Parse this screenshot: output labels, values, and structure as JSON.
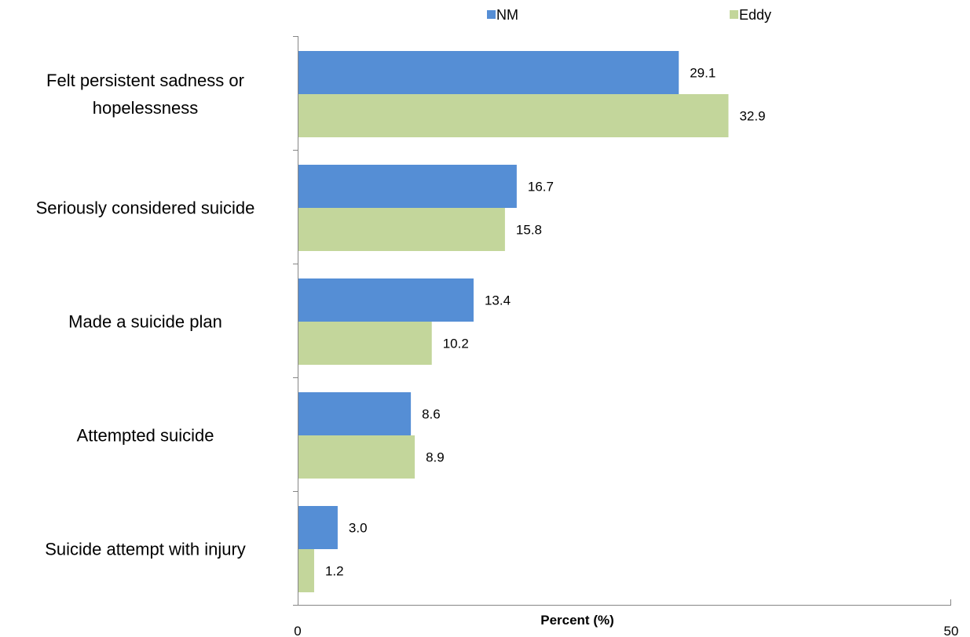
{
  "chart_data": {
    "type": "bar",
    "orientation": "horizontal",
    "categories": [
      [
        "Felt persistent sadness or",
        "hopelessness"
      ],
      [
        "Seriously considered suicide"
      ],
      [
        "Made a suicide plan"
      ],
      [
        "Attempted suicide"
      ],
      [
        "Suicide attempt with injury"
      ]
    ],
    "series": [
      {
        "name": "NM",
        "color": "#558ED5",
        "values": [
          29.1,
          16.7,
          13.4,
          8.6,
          3.0
        ],
        "labels": [
          "29.1",
          "16.7",
          "13.4",
          "8.6",
          "3.0"
        ]
      },
      {
        "name": "Eddy",
        "color": "#C3D69B",
        "values": [
          32.9,
          15.8,
          10.2,
          8.9,
          1.2
        ],
        "labels": [
          "32.9",
          "15.8",
          "10.2",
          "8.9",
          "1.2"
        ]
      }
    ],
    "xlabel": "Percent (%)",
    "ylabel": "",
    "xlim": [
      0,
      50
    ],
    "tick_labels": [
      "0",
      "50"
    ],
    "legend": "top",
    "grid": false
  }
}
